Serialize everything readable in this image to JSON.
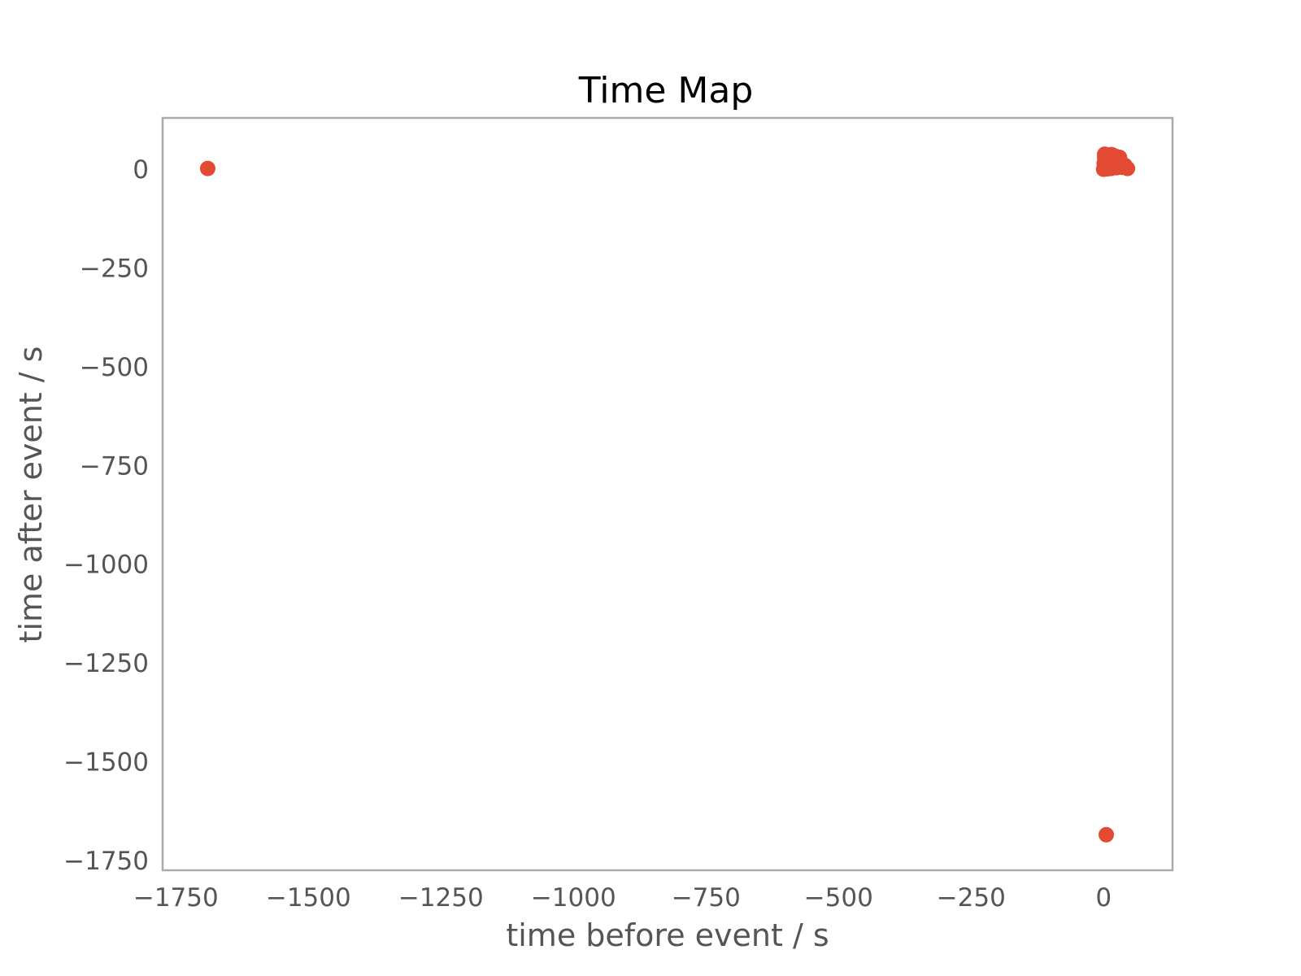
{
  "chart_data": {
    "type": "scatter",
    "title": "Time Map",
    "xlabel": "time before event / s",
    "ylabel": "time after event / s",
    "xlim": [
      -1775,
      130
    ],
    "ylim": [
      -1775,
      130
    ],
    "grid": false,
    "colors": {
      "marker": "#e24a33",
      "frame": "#aaaaaa",
      "tick_text": "#555555",
      "title_text": "#000000"
    },
    "x_ticks": [
      {
        "value": -1750,
        "label": "−1750"
      },
      {
        "value": -1500,
        "label": "−1500"
      },
      {
        "value": -1250,
        "label": "−1250"
      },
      {
        "value": -1000,
        "label": "−1000"
      },
      {
        "value": -750,
        "label": "−750"
      },
      {
        "value": -500,
        "label": "−500"
      },
      {
        "value": -250,
        "label": "−250"
      },
      {
        "value": 0,
        "label": "0"
      }
    ],
    "y_ticks": [
      {
        "value": 0,
        "label": "0"
      },
      {
        "value": -250,
        "label": "−250"
      },
      {
        "value": -500,
        "label": "−500"
      },
      {
        "value": -750,
        "label": "−750"
      },
      {
        "value": -1000,
        "label": "−1000"
      },
      {
        "value": -1250,
        "label": "−1250"
      },
      {
        "value": -1500,
        "label": "−1500"
      },
      {
        "value": -1750,
        "label": "−1750"
      }
    ],
    "points": [
      {
        "x": -1690,
        "y": 2
      },
      {
        "x": 5,
        "y": -1685
      },
      {
        "x": 2,
        "y": 38
      },
      {
        "x": 8,
        "y": 36
      },
      {
        "x": 15,
        "y": 37
      },
      {
        "x": 22,
        "y": 33
      },
      {
        "x": 30,
        "y": 30
      },
      {
        "x": 3,
        "y": 25
      },
      {
        "x": 10,
        "y": 22
      },
      {
        "x": 18,
        "y": 24
      },
      {
        "x": 26,
        "y": 20
      },
      {
        "x": 1,
        "y": 15
      },
      {
        "x": 6,
        "y": 12
      },
      {
        "x": 12,
        "y": 14
      },
      {
        "x": 20,
        "y": 10
      },
      {
        "x": 28,
        "y": 8
      },
      {
        "x": 4,
        "y": 5
      },
      {
        "x": 9,
        "y": 3
      },
      {
        "x": 16,
        "y": 6
      },
      {
        "x": 24,
        "y": 4
      },
      {
        "x": 0,
        "y": 0
      },
      {
        "x": 7,
        "y": 1
      },
      {
        "x": 14,
        "y": 2
      },
      {
        "x": 35,
        "y": 5
      },
      {
        "x": 45,
        "y": 2
      },
      {
        "x": 40,
        "y": 10
      },
      {
        "x": 2,
        "y": 30
      },
      {
        "x": 11,
        "y": 30
      },
      {
        "x": 19,
        "y": 17
      },
      {
        "x": 25,
        "y": 28
      }
    ]
  }
}
